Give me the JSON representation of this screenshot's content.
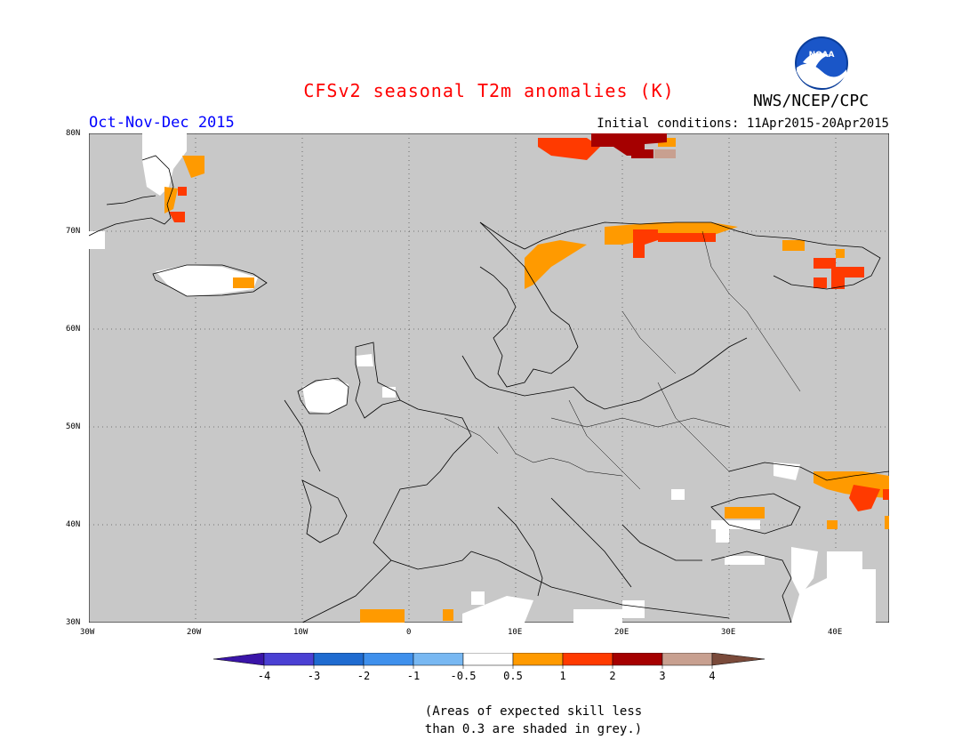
{
  "title": "CFSv2 seasonal T2m anomalies (K)",
  "period": "Oct-Nov-Dec 2015",
  "initial_conditions": "Initial conditions: 11Apr2015-20Apr2015",
  "agency": "NWS/NCEP/CPC",
  "logo_text": "NOAA",
  "lat_labels": [
    "80N",
    "70N",
    "60N",
    "50N",
    "40N",
    "30N"
  ],
  "lon_labels": [
    "30W",
    "20W",
    "10W",
    "0",
    "10E",
    "20E",
    "30E",
    "40E"
  ],
  "legend": {
    "labels": [
      "-4",
      "-3",
      "-2",
      "-1",
      "-0.5",
      "0.5",
      "1",
      "2",
      "3",
      "4"
    ],
    "colors": [
      "#3a15a8",
      "#4a40d3",
      "#1f6bd0",
      "#3f90ec",
      "#78b8f2",
      "#ffffff",
      "#ff9a00",
      "#ff3a00",
      "#a50000",
      "#c8a090",
      "#7a4a3a"
    ]
  },
  "footnote_line1": "(Areas of expected skill less",
  "footnote_line2": "than 0.3 are shaded in grey.)",
  "colors": {
    "land_grey": "#c8c8c8",
    "title": "#ff0000",
    "period": "#0000ff"
  }
}
